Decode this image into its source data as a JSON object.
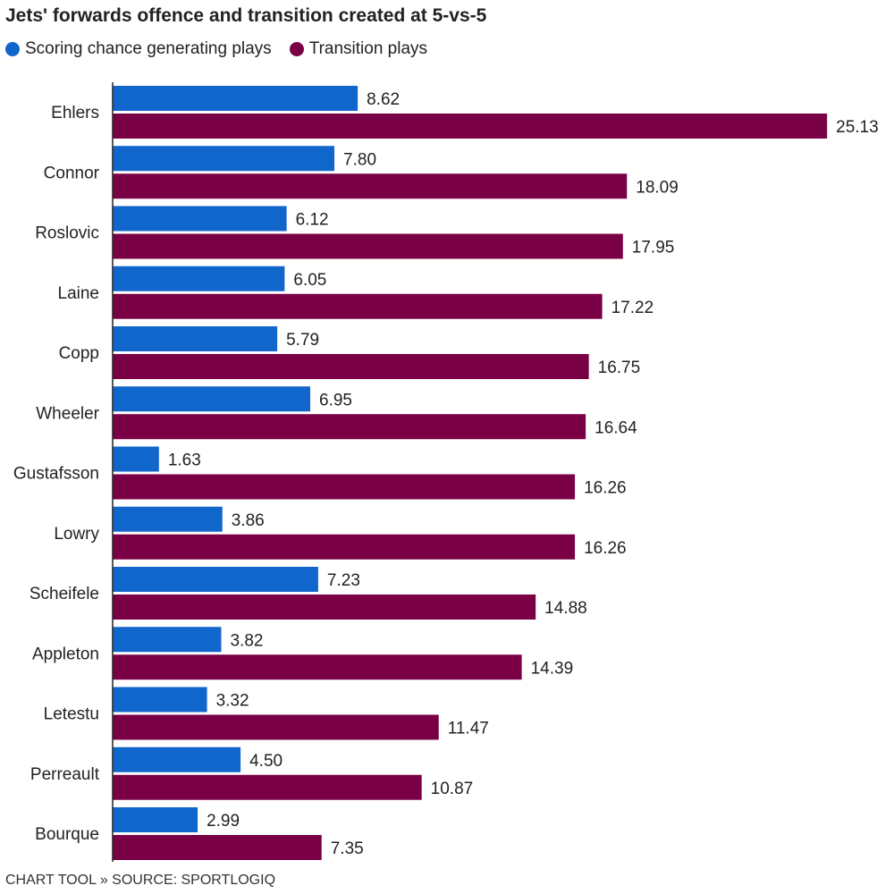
{
  "title": "Jets' forwards offence and transition created at 5-vs-5",
  "source": "CHART TOOL » SOURCE: SPORTLOGIQ",
  "chart_data": {
    "type": "bar",
    "orientation": "horizontal",
    "title": "Jets' forwards offence and transition created at 5-vs-5",
    "xlabel": "",
    "ylabel": "",
    "grid": false,
    "legend_position": "top-left",
    "categories": [
      "Ehlers",
      "Connor",
      "Roslovic",
      "Laine",
      "Copp",
      "Wheeler",
      "Gustafsson",
      "Lowry",
      "Scheifele",
      "Appleton",
      "Letestu",
      "Perreault",
      "Bourque"
    ],
    "series": [
      {
        "name": "Scoring chance generating plays",
        "color": "#1166cc",
        "values": [
          8.62,
          7.8,
          6.12,
          6.05,
          5.79,
          6.95,
          1.63,
          3.86,
          7.23,
          3.82,
          3.32,
          4.5,
          2.99
        ],
        "labels": [
          "8.62",
          "7.80",
          "6.12",
          "6.05",
          "5.79",
          "6.95",
          "1.63",
          "3.86",
          "7.23",
          "3.82",
          "3.32",
          "4.50",
          "2.99"
        ]
      },
      {
        "name": "Transition plays",
        "color": "#7a0046",
        "values": [
          25.13,
          18.09,
          17.95,
          17.22,
          16.75,
          16.64,
          16.26,
          16.26,
          14.88,
          14.39,
          11.47,
          10.87,
          7.35
        ],
        "labels": [
          "25.13",
          "18.09",
          "17.95",
          "17.22",
          "16.75",
          "16.64",
          "16.26",
          "16.26",
          "14.88",
          "14.39",
          "11.47",
          "10.87",
          "7.35"
        ]
      }
    ]
  }
}
